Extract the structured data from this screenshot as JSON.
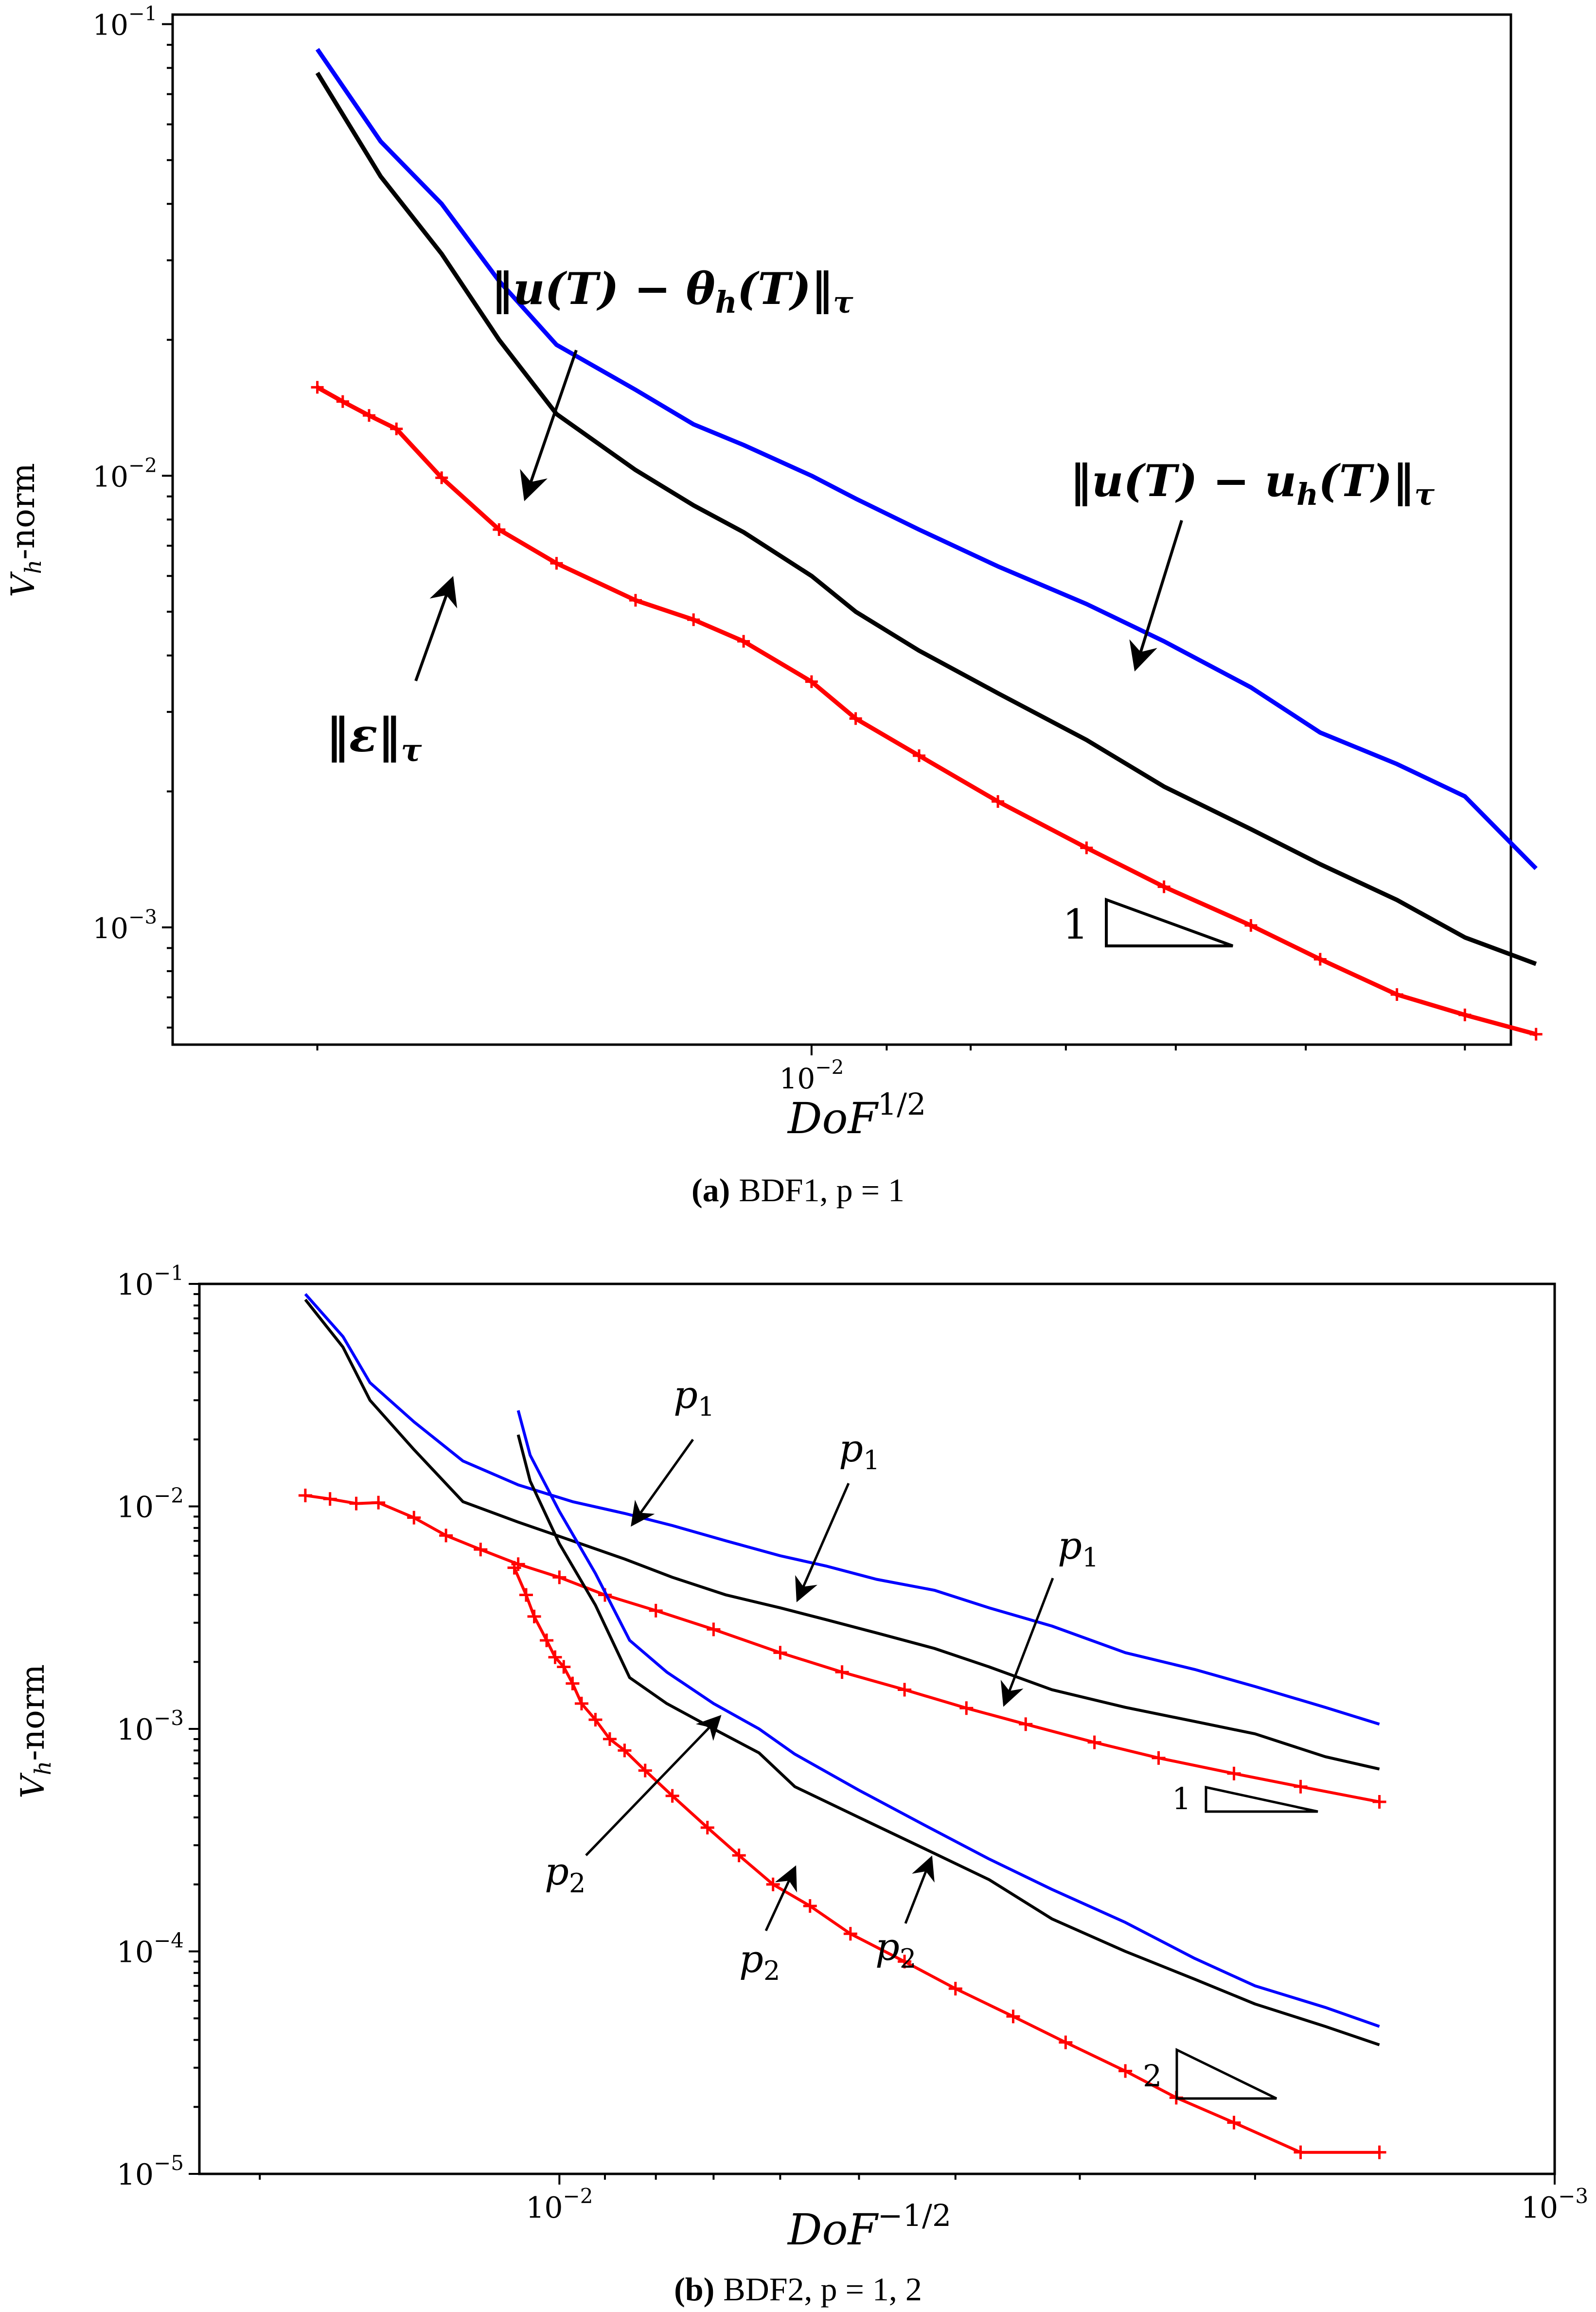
{
  "chart_data": [
    {
      "id": "a",
      "type": "line",
      "loglog": true,
      "xaxis_reversed": true,
      "xlabel": "DoF^{1/2}",
      "ylabel": "V_h-norm",
      "xlim": [
        0.0245,
        0.00375
      ],
      "ylim": [
        0.00055,
        0.105
      ],
      "yticks": [
        {
          "v": 0.1,
          "base": "10",
          "exp": "−1"
        },
        {
          "v": 0.01,
          "base": "10",
          "exp": "−2"
        },
        {
          "v": 0.001,
          "base": "10",
          "exp": "−3"
        }
      ],
      "xticks": [
        {
          "v": 0.01,
          "base": "10",
          "exp": "−2"
        }
      ],
      "caption": {
        "letter": "(a)",
        "text": "BDF1, p = 1"
      },
      "series": [
        {
          "name": "‖u(T) − u_h(T)‖_τ",
          "color": "#0000ff",
          "markers": false,
          "x": [
            0.02,
            0.0183,
            0.0168,
            0.0155,
            0.0143,
            0.0128,
            0.0118,
            0.011,
            0.01,
            0.0094,
            0.0086,
            0.0077,
            0.0068,
            0.0061,
            0.0054,
            0.0049,
            0.0044,
            0.004,
            0.00362
          ],
          "y": [
            0.088,
            0.055,
            0.04,
            0.027,
            0.0195,
            0.0155,
            0.013,
            0.0117,
            0.01,
            0.0089,
            0.0076,
            0.0063,
            0.0052,
            0.0043,
            0.0034,
            0.0027,
            0.0023,
            0.00195,
            0.00135
          ]
        },
        {
          "name": "‖u(T) − θ_h(T)‖_τ",
          "color": "#000000",
          "markers": false,
          "x": [
            0.02,
            0.0183,
            0.0168,
            0.0155,
            0.0143,
            0.0128,
            0.0118,
            0.011,
            0.01,
            0.0094,
            0.0086,
            0.0077,
            0.0068,
            0.0061,
            0.0054,
            0.0049,
            0.0044,
            0.004,
            0.00362
          ],
          "y": [
            0.078,
            0.046,
            0.031,
            0.02,
            0.0137,
            0.0103,
            0.0086,
            0.0075,
            0.006,
            0.005,
            0.0041,
            0.0033,
            0.0026,
            0.00205,
            0.00165,
            0.00138,
            0.00115,
            0.00095,
            0.00083
          ]
        },
        {
          "name": "‖ε‖_τ",
          "color": "#ff0000",
          "markers": true,
          "x": [
            0.02,
            0.0193,
            0.0186,
            0.0179,
            0.0168,
            0.0155,
            0.0143,
            0.0128,
            0.0118,
            0.011,
            0.01,
            0.0094,
            0.0086,
            0.0077,
            0.0068,
            0.0061,
            0.0054,
            0.0049,
            0.0044,
            0.004,
            0.00362
          ],
          "y": [
            0.0157,
            0.0146,
            0.0136,
            0.0127,
            0.0099,
            0.0076,
            0.0064,
            0.0053,
            0.0048,
            0.0043,
            0.0035,
            0.0029,
            0.0024,
            0.0019,
            0.0015,
            0.00123,
            0.00101,
            0.00085,
            0.00071,
            0.00064,
            0.00058
          ]
        }
      ],
      "annotations": [
        {
          "label": "‖u(T) − θ_h(T)‖_τ"
        },
        {
          "label": "‖u(T) − u_h(T)‖_τ"
        },
        {
          "label": "‖ε‖_τ"
        }
      ],
      "slope_triangle": {
        "label": "1"
      }
    },
    {
      "id": "b",
      "type": "line",
      "loglog": true,
      "xaxis_reversed": true,
      "xlabel": "DoF^{−1/2}",
      "ylabel": "V_h-norm",
      "xlim": [
        0.023,
        0.001
      ],
      "ylim": [
        1e-05,
        0.1
      ],
      "yticks": [
        {
          "v": 0.1,
          "base": "10",
          "exp": "−1"
        },
        {
          "v": 0.01,
          "base": "10",
          "exp": "−2"
        },
        {
          "v": 0.001,
          "base": "10",
          "exp": "−3"
        },
        {
          "v": 0.0001,
          "base": "10",
          "exp": "−4"
        },
        {
          "v": 1e-05,
          "base": "10",
          "exp": "−5"
        }
      ],
      "xticks": [
        {
          "v": 0.01,
          "base": "10",
          "exp": "−2"
        },
        {
          "v": 0.001,
          "base": "10",
          "exp": "−3"
        }
      ],
      "caption": {
        "letter": "(b)",
        "text": "BDF2, p = 1, 2"
      },
      "series": [
        {
          "name": "p1 blue",
          "color": "#0000ff",
          "markers": false,
          "x": [
            0.018,
            0.0165,
            0.0155,
            0.014,
            0.0125,
            0.011,
            0.0097,
            0.0086,
            0.0077,
            0.0068,
            0.006,
            0.0054,
            0.0048,
            0.0042,
            0.0037,
            0.0032,
            0.0027,
            0.0023,
            0.002,
            0.0017,
            0.0015
          ],
          "y": [
            0.09,
            0.058,
            0.036,
            0.024,
            0.016,
            0.0125,
            0.0105,
            0.0093,
            0.0082,
            0.007,
            0.006,
            0.0054,
            0.0047,
            0.0042,
            0.0035,
            0.0029,
            0.0022,
            0.00185,
            0.00155,
            0.00125,
            0.00105
          ]
        },
        {
          "name": "p1 black",
          "color": "#000000",
          "markers": false,
          "x": [
            0.018,
            0.0165,
            0.0155,
            0.014,
            0.0125,
            0.011,
            0.0097,
            0.0086,
            0.0077,
            0.0068,
            0.006,
            0.0054,
            0.0048,
            0.0042,
            0.0037,
            0.0032,
            0.0027,
            0.0023,
            0.002,
            0.0017,
            0.0015
          ],
          "y": [
            0.085,
            0.052,
            0.03,
            0.018,
            0.0105,
            0.0085,
            0.007,
            0.0058,
            0.0048,
            0.004,
            0.0035,
            0.0031,
            0.0027,
            0.0023,
            0.0019,
            0.0015,
            0.00125,
            0.00108,
            0.00095,
            0.00075,
            0.00066
          ]
        },
        {
          "name": "p1 red",
          "color": "#ff0000",
          "markers": true,
          "x": [
            0.018,
            0.017,
            0.016,
            0.0152,
            0.014,
            0.013,
            0.012,
            0.011,
            0.01,
            0.009,
            0.008,
            0.007,
            0.006,
            0.0052,
            0.0045,
            0.0039,
            0.0034,
            0.0029,
            0.0025,
            0.0021,
            0.0018,
            0.0015
          ],
          "y": [
            0.0112,
            0.0108,
            0.0103,
            0.0104,
            0.0089,
            0.0074,
            0.0064,
            0.0055,
            0.0048,
            0.004,
            0.0034,
            0.0028,
            0.0022,
            0.0018,
            0.0015,
            0.00124,
            0.00105,
            0.00087,
            0.00074,
            0.00063,
            0.00055,
            0.00047
          ]
        },
        {
          "name": "p2 blue",
          "color": "#0000ff",
          "markers": false,
          "x": [
            0.011,
            0.0107,
            0.01,
            0.0092,
            0.0085,
            0.0078,
            0.007,
            0.0063,
            0.0058,
            0.005,
            0.0043,
            0.0037,
            0.0032,
            0.0027,
            0.0023,
            0.002,
            0.0017,
            0.0015
          ],
          "y": [
            0.027,
            0.017,
            0.0095,
            0.005,
            0.0025,
            0.0018,
            0.0013,
            0.001,
            0.00077,
            0.00053,
            0.00037,
            0.00026,
            0.00019,
            0.000135,
            9.3e-05,
            7e-05,
            5.6e-05,
            4.6e-05
          ]
        },
        {
          "name": "p2 black",
          "color": "#000000",
          "markers": false,
          "x": [
            0.011,
            0.0107,
            0.01,
            0.0092,
            0.0085,
            0.0078,
            0.007,
            0.0063,
            0.0058,
            0.005,
            0.0043,
            0.0037,
            0.0032,
            0.0027,
            0.0023,
            0.002,
            0.0017,
            0.0015
          ],
          "y": [
            0.021,
            0.013,
            0.0068,
            0.0036,
            0.0017,
            0.0013,
            0.001,
            0.00078,
            0.00055,
            0.0004,
            0.00029,
            0.00021,
            0.00014,
            0.0001,
            7.5e-05,
            5.8e-05,
            4.6e-05,
            3.8e-05
          ]
        },
        {
          "name": "p2 red",
          "color": "#ff0000",
          "markers": true,
          "x": [
            0.0111,
            0.0108,
            0.0106,
            0.0103,
            0.0101,
            0.0099,
            0.0097,
            0.0095,
            0.0092,
            0.0089,
            0.0086,
            0.0082,
            0.0077,
            0.0071,
            0.0066,
            0.0061,
            0.0056,
            0.0051,
            0.0045,
            0.004,
            0.0035,
            0.0031,
            0.0027,
            0.0024,
            0.0021,
            0.0018,
            0.0015
          ],
          "y": [
            0.0053,
            0.004,
            0.0032,
            0.0025,
            0.0021,
            0.0019,
            0.0016,
            0.0013,
            0.0011,
            0.0009,
            0.0008,
            0.00065,
            0.0005,
            0.00036,
            0.00027,
            0.0002,
            0.00016,
            0.00012,
            9e-05,
            6.8e-05,
            5.1e-05,
            3.9e-05,
            2.9e-05,
            2.2e-05,
            1.7e-05,
            1.25e-05,
            1.25e-05
          ]
        }
      ],
      "annotations": [
        {
          "label": "p",
          "sub": "1"
        },
        {
          "label": "p",
          "sub": "1"
        },
        {
          "label": "p",
          "sub": "1"
        },
        {
          "label": "p",
          "sub": "2"
        },
        {
          "label": "p",
          "sub": "2"
        },
        {
          "label": "p",
          "sub": "2"
        }
      ],
      "slope_triangles": [
        {
          "label": "1"
        },
        {
          "label": "2"
        }
      ]
    }
  ]
}
